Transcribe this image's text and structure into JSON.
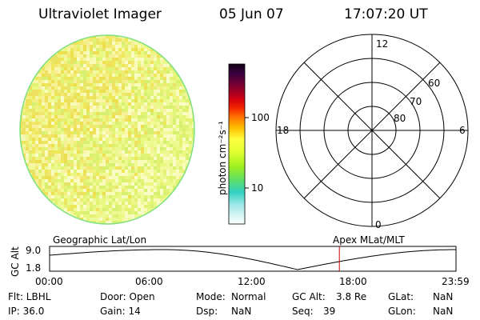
{
  "header": {
    "instrument": "Ultraviolet Imager",
    "date": "05 Jun 07",
    "time": "17:07:20 UT"
  },
  "colorbar": {
    "unit_label": "photon cm⁻²s⁻¹",
    "tick_100": "100",
    "tick_10": "10",
    "colors": [
      "#000000",
      "#1a0030",
      "#4a0040",
      "#7a0030",
      "#a00020",
      "#c80010",
      "#e00000",
      "#ff4000",
      "#ff8000",
      "#ffb000",
      "#ffe000",
      "#ffff40",
      "#f0ff30",
      "#d0ff20",
      "#a0ff30",
      "#70f050",
      "#40e090",
      "#30d0c0",
      "#80e8e0",
      "#d0f0f0",
      "#ffffff"
    ]
  },
  "polar": {
    "mlt_labels": {
      "top": "12",
      "bottom": "0",
      "left": "18",
      "right": "6"
    },
    "lat_labels": {
      "r60": "60",
      "r70": "70",
      "r80": "80"
    }
  },
  "timeline": {
    "left_label": "Geographic Lat/Lon",
    "right_label": "Apex  MLat/MLT",
    "axis_label": "GC Alt",
    "y_max": "9.0",
    "y_min": "1.8",
    "x_ticks": [
      "00:00",
      "06:00",
      "12:00",
      "18:00",
      "23:59"
    ],
    "current_time_fraction": 0.713,
    "curve_color": "#000000",
    "marker_color": "#cc0000"
  },
  "info": {
    "row1": {
      "flt": "Flt: LBHL",
      "door": "Door: Open",
      "mode_label": "Mode:",
      "mode_value": "Normal",
      "gcalt_label": "GC Alt:",
      "gcalt_value": "3.8 Re",
      "glat_label": "GLat:",
      "glat_value": "NaN"
    },
    "row2": {
      "ip": "IP: 36.0",
      "gain": "Gain: 14",
      "dsp_label": "Dsp:",
      "dsp_value": "NaN",
      "seq_label": "Seq:",
      "seq_value": "39",
      "glon_label": "GLon:",
      "glon_value": "NaN"
    }
  }
}
